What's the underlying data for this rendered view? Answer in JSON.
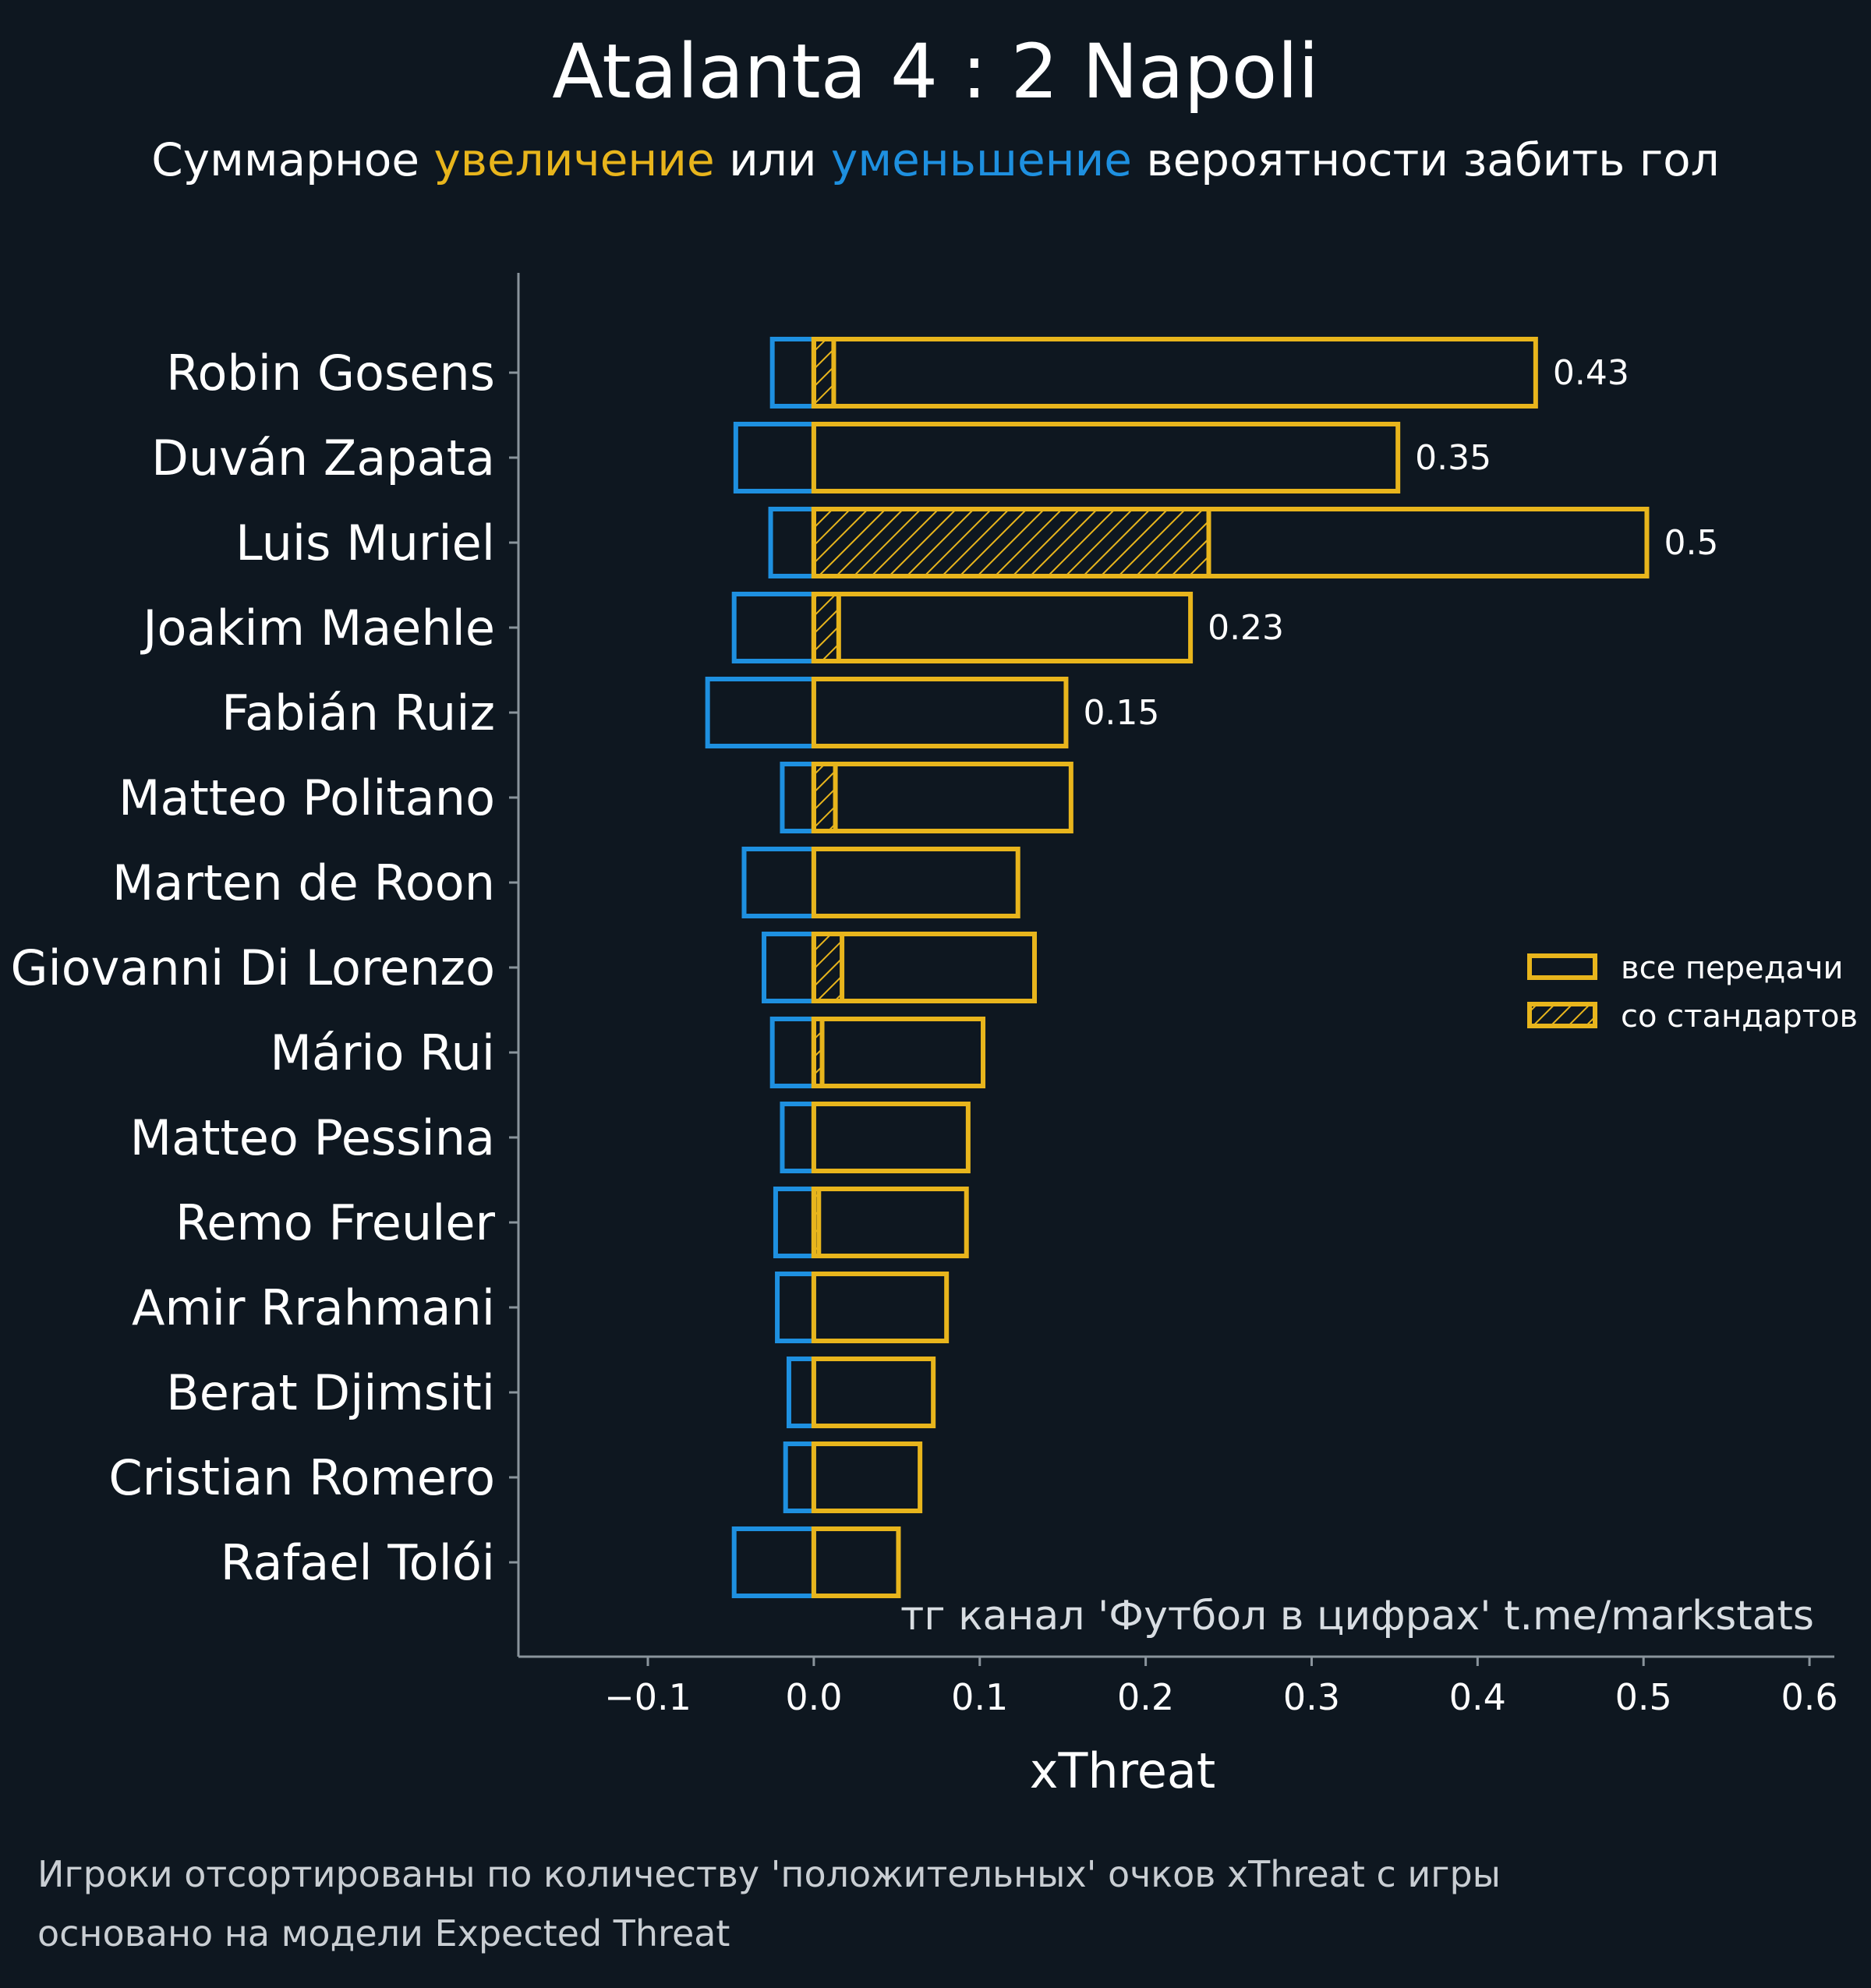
{
  "header": {
    "title": "Atalanta 4 : 2 Napoli",
    "subtitle": {
      "part1": "Суммарное ",
      "increase_word": "увеличение",
      "part2": " или ",
      "decrease_word": "уменьшение",
      "part3": " вероятности забить гол"
    }
  },
  "watermark": "тг канал 'Футбол в цифрах'  t.me/markstats",
  "footnotes": [
    "Игроки отсортированы по количеству 'положительных' очков xThreat с игры",
    "основано на модели Expected Threat"
  ],
  "colors": {
    "background": "#0e1720",
    "positive": "#e8b51c",
    "negative": "#1e90e0",
    "axis": "#8a949c",
    "text": "#ffffff",
    "footnote": "#c9ced3"
  },
  "chart_data": {
    "type": "bar",
    "orientation": "horizontal",
    "xlabel": "xThreat",
    "xlim": [
      -0.178,
      0.615
    ],
    "xticks": [
      -0.1,
      0.0,
      0.1,
      0.2,
      0.3,
      0.4,
      0.5,
      0.6
    ],
    "xtick_labels": [
      "−0.1",
      "0.0",
      "0.1",
      "0.2",
      "0.3",
      "0.4",
      "0.5",
      "0.6"
    ],
    "grid": false,
    "legend": {
      "placement": "right",
      "entries": [
        {
          "label": "все передачи",
          "style": "outline"
        },
        {
          "label": "со стандартов",
          "style": "hatched"
        }
      ]
    },
    "categories": [
      "Robin Gosens",
      "Duván Zapata",
      "Luis Muriel",
      "Joakim Maehle",
      "Fabián Ruiz",
      "Matteo Politano",
      "Marten de Roon",
      "Giovanni Di Lorenzo",
      "Mário Rui",
      "Matteo Pessina",
      "Remo Freuler",
      "Amir Rrahmani",
      "Berat Djimsiti",
      "Cristian Romero",
      "Rafael Tolói"
    ],
    "series": [
      {
        "name": "все передачи",
        "values": [
          0.435,
          0.352,
          0.502,
          0.227,
          0.152,
          0.155,
          0.123,
          0.133,
          0.102,
          0.093,
          0.092,
          0.08,
          0.072,
          0.064,
          0.051
        ]
      },
      {
        "name": "со стандартов",
        "values": [
          0.012,
          0.0,
          0.238,
          0.015,
          0.0,
          0.013,
          0.0,
          0.017,
          0.005,
          0.0,
          0.003,
          0.0,
          0.0,
          0.0,
          0.0
        ]
      },
      {
        "values": [
          -0.025,
          -0.047,
          -0.026,
          -0.048,
          -0.064,
          -0.019,
          -0.042,
          -0.03,
          -0.025,
          -0.019,
          -0.023,
          -0.022,
          -0.015,
          -0.017,
          -0.048
        ]
      }
    ],
    "data_labels": [
      "0.43",
      "0.35",
      "0.5",
      "0.23",
      "0.15",
      "",
      "",
      "",
      "",
      "",
      "",
      "",
      "",
      "",
      ""
    ]
  }
}
